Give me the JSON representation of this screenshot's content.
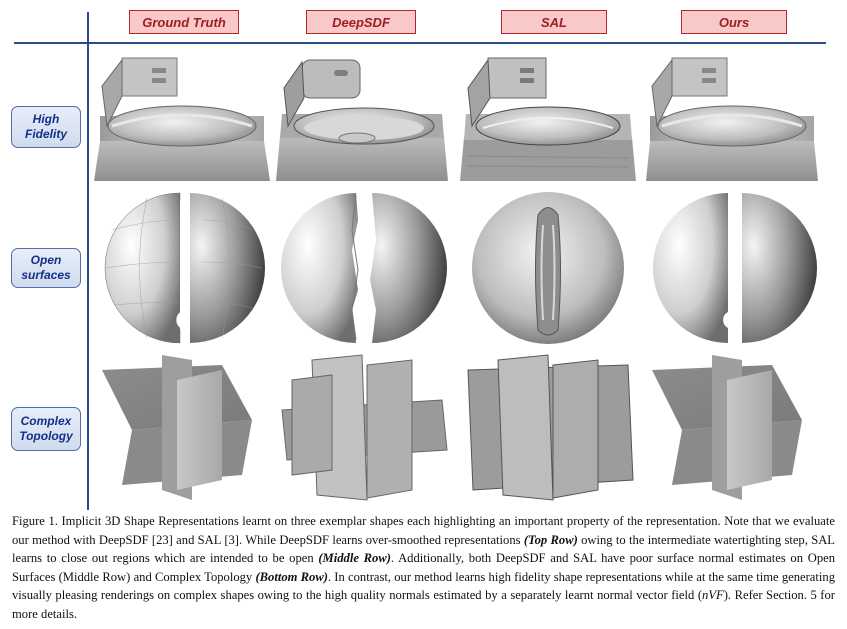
{
  "columns": [
    "Ground Truth",
    "DeepSDF",
    "SAL",
    "Ours"
  ],
  "rows": [
    "High\nFidelity",
    "Open\nsurfaces",
    "Complex\nTopology"
  ],
  "caption": {
    "part1": "Figure 1. Implicit 3D Shape Representations learnt on three exemplar shapes each highlighting an important property of the representation. Note that we evaluate our method with DeepSDF [23] and SAL [3]. While DeepSDF learns over-smoothed representations ",
    "top_row": "(Top Row)",
    "part2": " owing to the intermediate watertighting step, SAL learns to close out regions which are intended to be open ",
    "middle_row": "(Middle Row)",
    "part3": ". Additionally, both DeepSDF and SAL have poor surface normal estimates on Open Surfaces (Middle Row) and Complex Topology ",
    "bottom_row": "(Bottom Row)",
    "part4": ". In contrast, our method learns high fidelity shape representations while at the same time generating visually pleasing renderings on complex shapes owing to the high quality normals estimated by a separately learnt normal vector field (",
    "nvf": "nVF",
    "part5": "). Refer Section. 5 for more details."
  },
  "colors": {
    "header_fill": "#f9c9c9",
    "header_border": "#b3262e",
    "label_border": "#4f6fa8",
    "axis_line": "#2b4b8c"
  }
}
